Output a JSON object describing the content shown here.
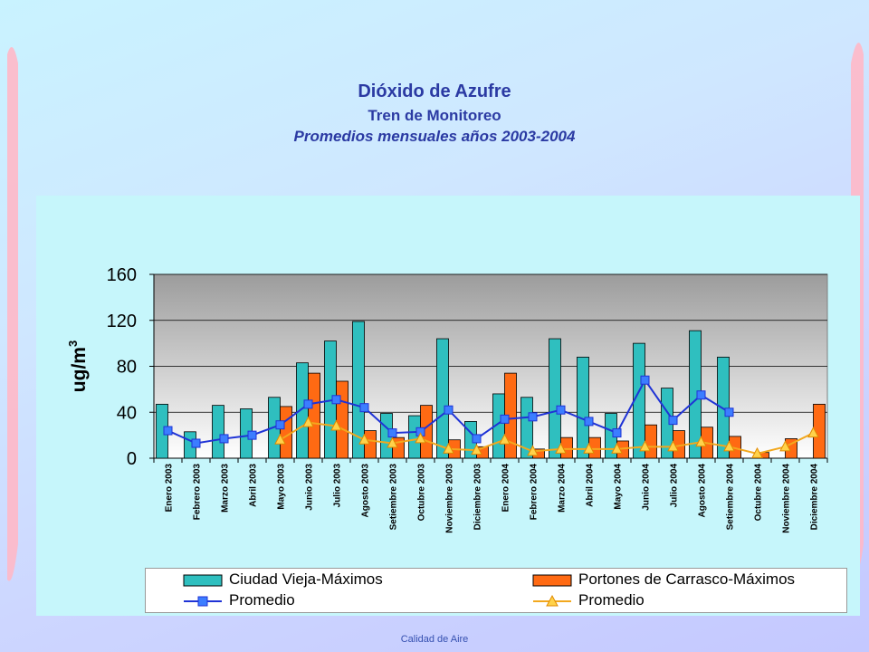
{
  "page": {
    "title": "Dióxido de Azufre",
    "subtitle": "Tren de Monitoreo",
    "subtitle2": "Promedios mensuales años 2003-2004",
    "footer": "Calidad de Aire"
  },
  "colors": {
    "title": "#2b3aa3",
    "cv_bar": "#2fbfbf",
    "pc_bar": "#ff6a13",
    "cv_line": "#1f33d6",
    "pc_line": "#f2a81e",
    "plot_bg_top": "#9c9c9c",
    "plot_bg_bottom": "#ffffff"
  },
  "chart_data": {
    "type": "bar",
    "title": "",
    "xlabel": "",
    "ylabel": "ug/m",
    "ylabel_sup": "3",
    "ylim": [
      0,
      160
    ],
    "yticks": [
      0,
      40,
      80,
      120,
      160
    ],
    "grid": true,
    "legend_position": "bottom",
    "categories": [
      "Enero 2003",
      "Febrero 2003",
      "Marzo 2003",
      "Abril 2003",
      "Mayo 2003",
      "Junio 2003",
      "Julio 2003",
      "Agosto 2003",
      "Setiembre 2003",
      "Octubre 2003",
      "Noviembre 2003",
      "Diciembre 2003",
      "Enero 2004",
      "Febrero 2004",
      "Marzo 2004",
      "Abril 2004",
      "Mayo 2004",
      "Junio 2004",
      "Julio 2004",
      "Agosto 2004",
      "Setiembre 2004",
      "Octubre 2004",
      "Noviembre 2004",
      "Diciembre 2004"
    ],
    "series": [
      {
        "name": "Ciudad Vieja-Máximos",
        "kind": "bar",
        "values": [
          47,
          23,
          46,
          43,
          53,
          83,
          102,
          119,
          39,
          37,
          104,
          32,
          56,
          53,
          104,
          88,
          39,
          100,
          61,
          111,
          88,
          null,
          null,
          null
        ]
      },
      {
        "name": "Portones de Carrasco-Máximos",
        "kind": "bar",
        "values": [
          null,
          null,
          null,
          null,
          45,
          74,
          67,
          24,
          18,
          46,
          16,
          10,
          74,
          8,
          18,
          18,
          15,
          29,
          24,
          27,
          19,
          5,
          17,
          47
        ]
      },
      {
        "name": "Promedio",
        "kind": "line",
        "marker": "square",
        "values": [
          24,
          13,
          17,
          20,
          29,
          47,
          51,
          44,
          22,
          23,
          42,
          17,
          34,
          36,
          42,
          32,
          22,
          68,
          33,
          55,
          40,
          null,
          null,
          null
        ]
      },
      {
        "name": "Promedio",
        "kind": "line",
        "marker": "triangle",
        "values": [
          null,
          null,
          null,
          null,
          16,
          31,
          28,
          16,
          13,
          17,
          8,
          7,
          16,
          6,
          8,
          8,
          8,
          10,
          10,
          14,
          10,
          4,
          10,
          22
        ]
      }
    ]
  }
}
